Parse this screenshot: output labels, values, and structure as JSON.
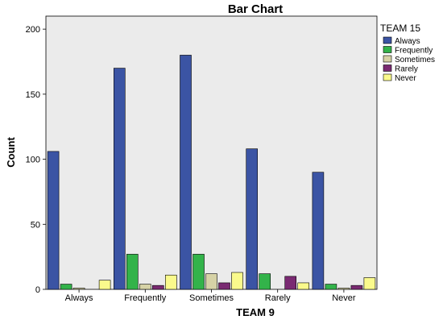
{
  "chart_data": {
    "type": "bar",
    "title": "Bar Chart",
    "xlabel": "TEAM 9",
    "ylabel": "Count",
    "categories": [
      "Always",
      "Frequently",
      "Sometimes",
      "Rarely",
      "Never"
    ],
    "ylim": [
      0,
      210
    ],
    "yticks": [
      0,
      50,
      100,
      150,
      200
    ],
    "grid": false,
    "legend": {
      "title": "TEAM 15",
      "placement": "right"
    },
    "series": [
      {
        "name": "Always",
        "color": "#3b54a4",
        "values": [
          106,
          170,
          180,
          108,
          90
        ]
      },
      {
        "name": "Frequently",
        "color": "#33b34a",
        "values": [
          4,
          27,
          27,
          12,
          4
        ]
      },
      {
        "name": "Sometimes",
        "color": "#d6d2a6",
        "values": [
          1,
          4,
          12,
          0,
          1
        ]
      },
      {
        "name": "Rarely",
        "color": "#7a2a72",
        "values": [
          0,
          3,
          5,
          10,
          3
        ]
      },
      {
        "name": "Never",
        "color": "#fafa8c",
        "values": [
          7,
          11,
          13,
          5,
          9
        ]
      }
    ]
  }
}
